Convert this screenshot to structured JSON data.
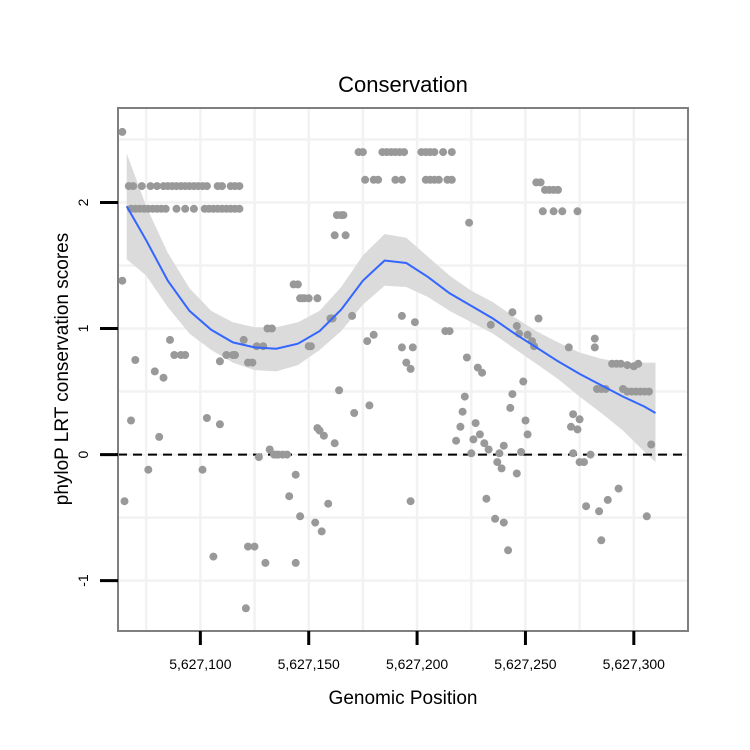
{
  "chart_data": {
    "type": "scatter",
    "title": "Conservation",
    "xlabel": "Genomic Position",
    "ylabel": "phyloP LRT conservation scores",
    "xlim": [
      5627062,
      5627325
    ],
    "ylim": [
      -1.4,
      2.75
    ],
    "x_ticks": [
      5627100,
      5627150,
      5627200,
      5627250,
      5627300
    ],
    "x_tick_labels": [
      "5,627,100",
      "5,627,150",
      "5,627,200",
      "5,627,250",
      "5,627,300"
    ],
    "y_ticks": [
      -1,
      0,
      1,
      2
    ],
    "y_tick_labels": [
      "-1",
      "0",
      "1",
      "2"
    ],
    "x_minor_gridlines": [
      5627075,
      5627125,
      5627175,
      5627225,
      5627275,
      5627325
    ],
    "y_minor_gridlines": [
      -0.5,
      0.5,
      1.5,
      2.5
    ],
    "reference_line": {
      "y": 0,
      "style": "dashed",
      "color": "#000000"
    },
    "colors": {
      "points": "#999999",
      "smooth": "#3366ff",
      "ribbon": "#d9d9d9",
      "panel_border": "#7f7f7f",
      "grid": "#f2f2f2"
    },
    "points": [
      [
        5627064,
        2.56
      ],
      [
        5627064,
        1.38
      ],
      [
        5627065,
        -0.37
      ],
      [
        5627067,
        2.13
      ],
      [
        5627068,
        0.27
      ],
      [
        5627070,
        0.75
      ],
      [
        5627068,
        1.95
      ],
      [
        5627070,
        1.95
      ],
      [
        5627072,
        1.95
      ],
      [
        5627074,
        1.95
      ],
      [
        5627076,
        1.95
      ],
      [
        5627078,
        1.95
      ],
      [
        5627080,
        1.95
      ],
      [
        5627082,
        1.95
      ],
      [
        5627084,
        1.95
      ],
      [
        5627089,
        1.95
      ],
      [
        5627093,
        1.95
      ],
      [
        5627097,
        1.95
      ],
      [
        5627102,
        1.95
      ],
      [
        5627104,
        1.95
      ],
      [
        5627106,
        1.95
      ],
      [
        5627108,
        1.95
      ],
      [
        5627110,
        1.95
      ],
      [
        5627112,
        1.95
      ],
      [
        5627114,
        1.95
      ],
      [
        5627116,
        1.95
      ],
      [
        5627118,
        1.95
      ],
      [
        5627069,
        2.13
      ],
      [
        5627073,
        2.13
      ],
      [
        5627077,
        2.13
      ],
      [
        5627080,
        2.13
      ],
      [
        5627083,
        2.13
      ],
      [
        5627085,
        2.13
      ],
      [
        5627087,
        2.13
      ],
      [
        5627089,
        2.13
      ],
      [
        5627091,
        2.13
      ],
      [
        5627093,
        2.13
      ],
      [
        5627095,
        2.13
      ],
      [
        5627097,
        2.13
      ],
      [
        5627099,
        2.13
      ],
      [
        5627101,
        2.13
      ],
      [
        5627103,
        2.13
      ],
      [
        5627108,
        2.13
      ],
      [
        5627110,
        2.13
      ],
      [
        5627114,
        2.13
      ],
      [
        5627116,
        2.13
      ],
      [
        5627118,
        2.13
      ],
      [
        5627076,
        -0.12
      ],
      [
        5627079,
        0.66
      ],
      [
        5627081,
        0.14
      ],
      [
        5627083,
        0.61
      ],
      [
        5627086,
        0.91
      ],
      [
        5627088,
        0.79
      ],
      [
        5627091,
        0.79
      ],
      [
        5627093,
        0.79
      ],
      [
        5627101,
        -0.12
      ],
      [
        5627103,
        0.29
      ],
      [
        5627106,
        -0.81
      ],
      [
        5627109,
        0.24
      ],
      [
        5627109,
        0.74
      ],
      [
        5627112,
        0.79
      ],
      [
        5627115,
        0.79
      ],
      [
        5627116,
        0.79
      ],
      [
        5627120,
        0.91
      ],
      [
        5627121,
        -1.22
      ],
      [
        5627122,
        -0.73
      ],
      [
        5627122,
        0.73
      ],
      [
        5627124,
        0.73
      ],
      [
        5627125,
        -0.73
      ],
      [
        5627126,
        0.86
      ],
      [
        5627127,
        -0.02
      ],
      [
        5627129,
        0.86
      ],
      [
        5627130,
        -0.86
      ],
      [
        5627131,
        1.0
      ],
      [
        5627133,
        1.0
      ],
      [
        5627132,
        0.04
      ],
      [
        5627134,
        0.0
      ],
      [
        5627135,
        0.0
      ],
      [
        5627136,
        0.0
      ],
      [
        5627138,
        0.0
      ],
      [
        5627140,
        0.0
      ],
      [
        5627141,
        -0.33
      ],
      [
        5627143,
        1.35
      ],
      [
        5627144,
        -0.16
      ],
      [
        5627144,
        -0.86
      ],
      [
        5627145,
        1.35
      ],
      [
        5627146,
        1.24
      ],
      [
        5627146,
        -0.49
      ],
      [
        5627147,
        1.24
      ],
      [
        5627148,
        1.24
      ],
      [
        5627150,
        1.24
      ],
      [
        5627150,
        0.86
      ],
      [
        5627151,
        0.86
      ],
      [
        5627153,
        -0.54
      ],
      [
        5627154,
        0.21
      ],
      [
        5627154,
        1.24
      ],
      [
        5627155,
        0.19
      ],
      [
        5627156,
        -0.61
      ],
      [
        5627157,
        0.15
      ],
      [
        5627159,
        -0.39
      ],
      [
        5627160,
        1.08
      ],
      [
        5627161,
        1.08
      ],
      [
        5627162,
        1.74
      ],
      [
        5627162,
        0.09
      ],
      [
        5627163,
        1.9
      ],
      [
        5627164,
        0.51
      ],
      [
        5627165,
        1.9
      ],
      [
        5627166,
        1.9
      ],
      [
        5627167,
        1.74
      ],
      [
        5627170,
        1.1
      ],
      [
        5627171,
        0.33
      ],
      [
        5627173,
        2.4
      ],
      [
        5627175,
        2.4
      ],
      [
        5627176,
        2.18
      ],
      [
        5627177,
        0.9
      ],
      [
        5627178,
        0.39
      ],
      [
        5627180,
        0.95
      ],
      [
        5627180,
        2.18
      ],
      [
        5627182,
        2.18
      ],
      [
        5627184,
        2.4
      ],
      [
        5627186,
        2.4
      ],
      [
        5627188,
        2.4
      ],
      [
        5627190,
        2.4
      ],
      [
        5627192,
        2.4
      ],
      [
        5627194,
        2.4
      ],
      [
        5627190,
        2.18
      ],
      [
        5627193,
        2.18
      ],
      [
        5627193,
        1.1
      ],
      [
        5627193,
        0.85
      ],
      [
        5627195,
        0.73
      ],
      [
        5627197,
        -0.37
      ],
      [
        5627197,
        0.68
      ],
      [
        5627198,
        0.85
      ],
      [
        5627199,
        1.05
      ],
      [
        5627202,
        2.4
      ],
      [
        5627204,
        2.4
      ],
      [
        5627206,
        2.4
      ],
      [
        5627208,
        2.4
      ],
      [
        5627212,
        2.4
      ],
      [
        5627216,
        2.4
      ],
      [
        5627204,
        2.18
      ],
      [
        5627206,
        2.18
      ],
      [
        5627208,
        2.18
      ],
      [
        5627210,
        2.18
      ],
      [
        5627214,
        2.18
      ],
      [
        5627216,
        2.18
      ],
      [
        5627213,
        0.98
      ],
      [
        5627215,
        0.98
      ],
      [
        5627218,
        0.11
      ],
      [
        5627220,
        0.22
      ],
      [
        5627221,
        0.34
      ],
      [
        5627222,
        0.46
      ],
      [
        5627223,
        0.77
      ],
      [
        5627224,
        1.84
      ],
      [
        5627225,
        0.01
      ],
      [
        5627226,
        0.12
      ],
      [
        5627227,
        0.25
      ],
      [
        5627228,
        0.69
      ],
      [
        5627229,
        0.16
      ],
      [
        5627230,
        0.65
      ],
      [
        5627231,
        0.09
      ],
      [
        5627232,
        -0.35
      ],
      [
        5627233,
        0.04
      ],
      [
        5627234,
        1.03
      ],
      [
        5627236,
        -0.51
      ],
      [
        5627237,
        -0.06
      ],
      [
        5627238,
        0.01
      ],
      [
        5627239,
        -0.11
      ],
      [
        5627240,
        0.07
      ],
      [
        5627240,
        -0.54
      ],
      [
        5627242,
        -0.76
      ],
      [
        5627243,
        0.37
      ],
      [
        5627244,
        0.48
      ],
      [
        5627244,
        1.13
      ],
      [
        5627246,
        1.02
      ],
      [
        5627246,
        -0.15
      ],
      [
        5627247,
        0.96
      ],
      [
        5627248,
        0.02
      ],
      [
        5627249,
        0.58
      ],
      [
        5627250,
        0.27
      ],
      [
        5627251,
        0.16
      ],
      [
        5627251,
        0.95
      ],
      [
        5627253,
        0.9
      ],
      [
        5627254,
        0.86
      ],
      [
        5627256,
        1.08
      ],
      [
        5627255,
        2.16
      ],
      [
        5627257,
        2.16
      ],
      [
        5627258,
        1.93
      ],
      [
        5627259,
        2.1
      ],
      [
        5627261,
        2.1
      ],
      [
        5627263,
        2.1
      ],
      [
        5627265,
        2.1
      ],
      [
        5627263,
        1.93
      ],
      [
        5627267,
        1.93
      ],
      [
        5627270,
        0.85
      ],
      [
        5627271,
        0.22
      ],
      [
        5627272,
        0.01
      ],
      [
        5627272,
        0.32
      ],
      [
        5627274,
        0.2
      ],
      [
        5627275,
        -0.06
      ],
      [
        5627275,
        0.28
      ],
      [
        5627277,
        -0.06
      ],
      [
        5627278,
        -0.41
      ],
      [
        5627274,
        1.93
      ],
      [
        5627280,
        0.0
      ],
      [
        5627282,
        0.85
      ],
      [
        5627282,
        0.92
      ],
      [
        5627283,
        0.52
      ],
      [
        5627284,
        -0.45
      ],
      [
        5627285,
        -0.68
      ],
      [
        5627285,
        0.52
      ],
      [
        5627287,
        0.52
      ],
      [
        5627288,
        -0.36
      ],
      [
        5627290,
        0.72
      ],
      [
        5627292,
        0.72
      ],
      [
        5627293,
        -0.27
      ],
      [
        5627294,
        0.72
      ],
      [
        5627295,
        0.52
      ],
      [
        5627297,
        0.5
      ],
      [
        5627299,
        0.5
      ],
      [
        5627301,
        0.5
      ],
      [
        5627303,
        0.5
      ],
      [
        5627305,
        0.5
      ],
      [
        5627307,
        0.5
      ],
      [
        5627306,
        -0.49
      ],
      [
        5627308,
        0.08
      ],
      [
        5627297,
        0.71
      ],
      [
        5627300,
        0.7
      ],
      [
        5627302,
        0.72
      ]
    ],
    "smooth_line": [
      {
        "x": 5627066,
        "y": 1.97,
        "lo": 1.55,
        "hi": 2.39
      },
      {
        "x": 5627075,
        "y": 1.7,
        "lo": 1.42,
        "hi": 1.97
      },
      {
        "x": 5627085,
        "y": 1.38,
        "lo": 1.17,
        "hi": 1.6
      },
      {
        "x": 5627095,
        "y": 1.14,
        "lo": 0.96,
        "hi": 1.32
      },
      {
        "x": 5627105,
        "y": 0.99,
        "lo": 0.83,
        "hi": 1.14
      },
      {
        "x": 5627115,
        "y": 0.89,
        "lo": 0.73,
        "hi": 1.05
      },
      {
        "x": 5627125,
        "y": 0.85,
        "lo": 0.67,
        "hi": 1.01
      },
      {
        "x": 5627135,
        "y": 0.84,
        "lo": 0.66,
        "hi": 1.01
      },
      {
        "x": 5627145,
        "y": 0.88,
        "lo": 0.71,
        "hi": 1.05
      },
      {
        "x": 5627155,
        "y": 0.98,
        "lo": 0.83,
        "hi": 1.14
      },
      {
        "x": 5627165,
        "y": 1.15,
        "lo": 0.98,
        "hi": 1.33
      },
      {
        "x": 5627175,
        "y": 1.38,
        "lo": 1.19,
        "hi": 1.58
      },
      {
        "x": 5627185,
        "y": 1.54,
        "lo": 1.34,
        "hi": 1.75
      },
      {
        "x": 5627195,
        "y": 1.52,
        "lo": 1.33,
        "hi": 1.72
      },
      {
        "x": 5627205,
        "y": 1.41,
        "lo": 1.25,
        "hi": 1.57
      },
      {
        "x": 5627215,
        "y": 1.28,
        "lo": 1.14,
        "hi": 1.42
      },
      {
        "x": 5627225,
        "y": 1.18,
        "lo": 1.05,
        "hi": 1.3
      },
      {
        "x": 5627235,
        "y": 1.08,
        "lo": 0.96,
        "hi": 1.21
      },
      {
        "x": 5627245,
        "y": 0.96,
        "lo": 0.84,
        "hi": 1.09
      },
      {
        "x": 5627255,
        "y": 0.85,
        "lo": 0.72,
        "hi": 0.98
      },
      {
        "x": 5627265,
        "y": 0.74,
        "lo": 0.6,
        "hi": 0.89
      },
      {
        "x": 5627275,
        "y": 0.64,
        "lo": 0.46,
        "hi": 0.81
      },
      {
        "x": 5627285,
        "y": 0.55,
        "lo": 0.33,
        "hi": 0.76
      },
      {
        "x": 5627295,
        "y": 0.46,
        "lo": 0.19,
        "hi": 0.73
      },
      {
        "x": 5627305,
        "y": 0.38,
        "lo": 0.02,
        "hi": 0.73
      },
      {
        "x": 5627310,
        "y": 0.33,
        "lo": -0.06,
        "hi": 0.73
      }
    ]
  }
}
